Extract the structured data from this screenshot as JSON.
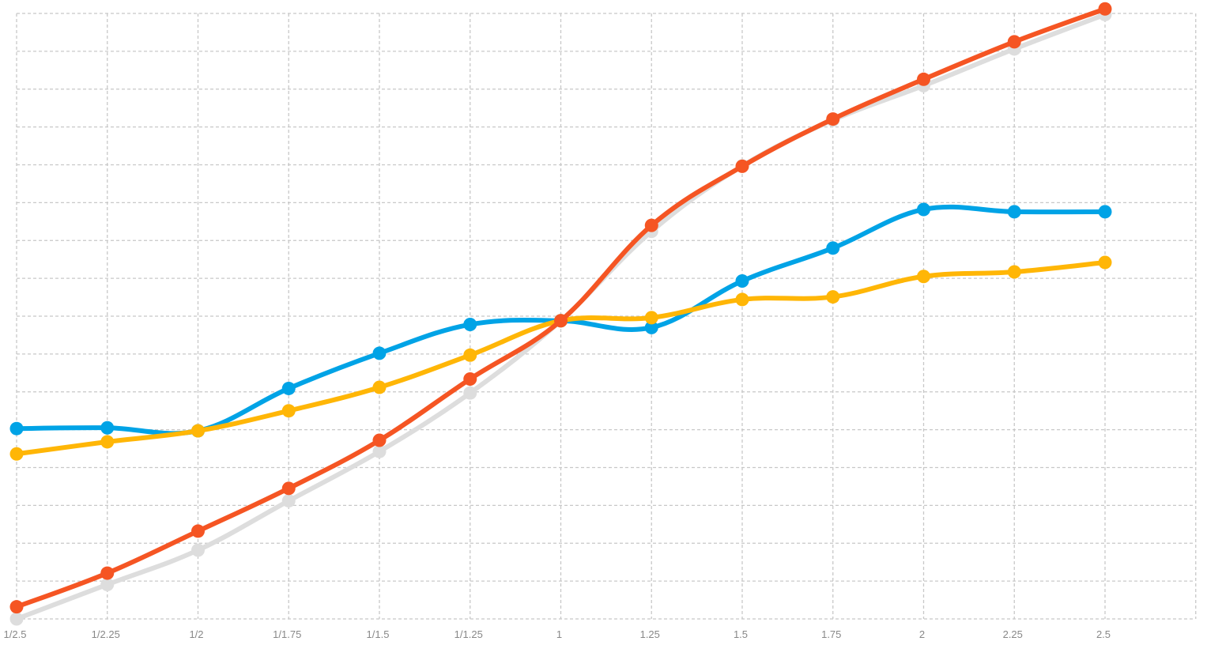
{
  "chart_data": {
    "type": "line",
    "categories": [
      "1/2.5",
      "1/2.25",
      "1/2",
      "1/1.75",
      "1/1.5",
      "1/1.25",
      "1",
      "1.25",
      "1.5",
      "1.75",
      "2",
      "2.25",
      "2.5"
    ],
    "y_grid_lines": 16,
    "grid": true,
    "legend": "none",
    "series": [
      {
        "color": "#dddddd",
        "values": [
          0.0,
          0.909,
          1.818,
          3.121,
          4.424,
          5.97,
          7.879,
          10.242,
          11.97,
          13.182,
          14.091,
          15.061,
          15.97
        ]
      },
      {
        "color": "#00a3e6",
        "values": [
          5.03,
          5.05,
          4.97,
          6.09,
          7.02,
          7.78,
          7.88,
          7.7,
          8.93,
          9.8,
          10.82,
          10.76,
          10.76
        ]
      },
      {
        "color": "#ffb606",
        "values": [
          4.36,
          4.68,
          4.97,
          5.5,
          6.12,
          6.97,
          7.88,
          7.96,
          8.44,
          8.51,
          9.05,
          9.17,
          9.42
        ]
      },
      {
        "color": "#f55523",
        "values": [
          0.32,
          1.21,
          2.32,
          3.45,
          4.72,
          6.34,
          7.88,
          10.4,
          11.96,
          13.21,
          14.26,
          15.25,
          16.12
        ]
      }
    ]
  }
}
